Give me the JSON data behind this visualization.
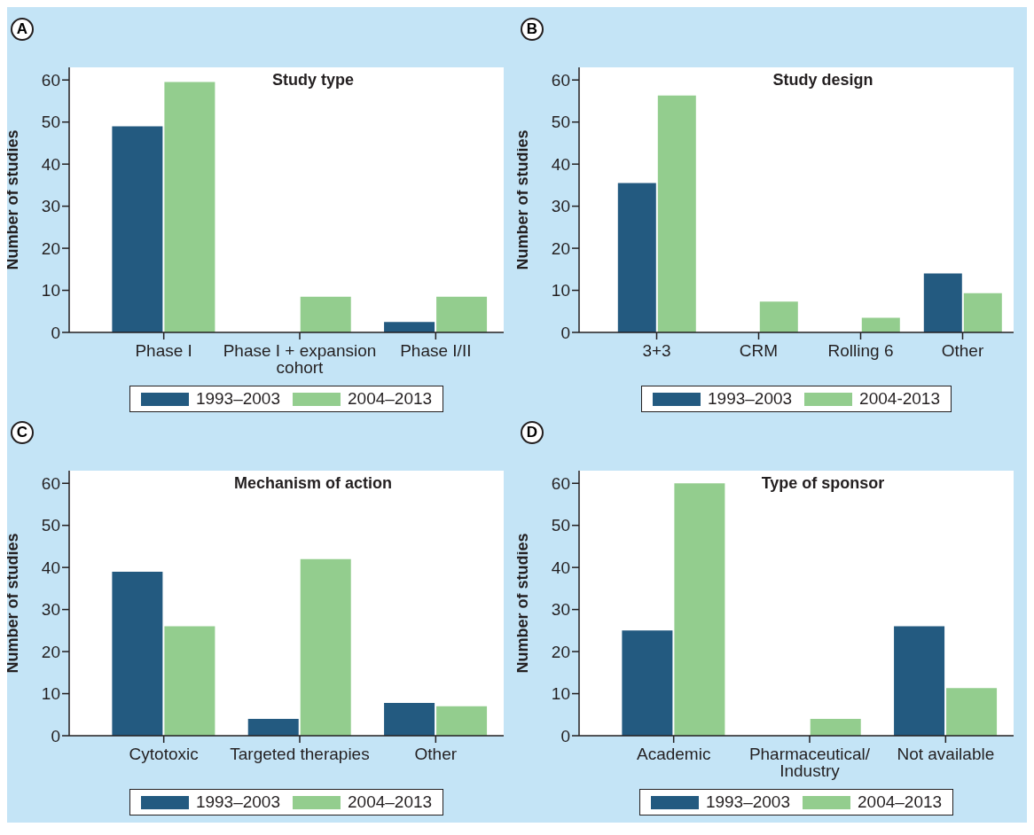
{
  "chart_data": [
    {
      "type": "bar",
      "title": "Study type",
      "ylabel": "Number of studies",
      "annotations": [
        "A"
      ],
      "categories": [
        "Phase I",
        "Phase I + expansion cohort",
        "Phase I/II"
      ],
      "series": [
        {
          "name": "1993–2003",
          "color": "#235a80",
          "values": [
            49,
            0,
            2.5
          ]
        },
        {
          "name": "2004–2013",
          "color": "#93cd8e",
          "values": [
            59.5,
            8.5,
            8.5
          ]
        }
      ],
      "ylim": [
        0,
        63
      ],
      "yticks": [
        0,
        10,
        20,
        30,
        40,
        50,
        60
      ],
      "legend": "bottom"
    },
    {
      "type": "bar",
      "title": "Study design",
      "ylabel": "Number of studies",
      "annotations": [
        "B"
      ],
      "categories": [
        "3+3",
        "CRM",
        "Rolling 6",
        "Other"
      ],
      "series": [
        {
          "name": "1993–2003",
          "color": "#235a80",
          "values": [
            35.5,
            0,
            0,
            14
          ]
        },
        {
          "name": "2004-2013",
          "color": "#93cd8e",
          "values": [
            56.3,
            7.3,
            3.5,
            9.3
          ]
        }
      ],
      "ylim": [
        0,
        63
      ],
      "yticks": [
        0,
        10,
        20,
        30,
        40,
        50,
        60
      ],
      "legend": "bottom"
    },
    {
      "type": "bar",
      "title": "Mechanism of action",
      "ylabel": "Number of studies",
      "annotations": [
        "C"
      ],
      "categories": [
        "Cytotoxic",
        "Targeted therapies",
        "Other"
      ],
      "series": [
        {
          "name": "1993–2003",
          "color": "#235a80",
          "values": [
            39,
            4,
            7.8
          ]
        },
        {
          "name": "2004–2013",
          "color": "#93cd8e",
          "values": [
            26,
            42,
            7
          ]
        }
      ],
      "ylim": [
        0,
        63
      ],
      "yticks": [
        0,
        10,
        20,
        30,
        40,
        50,
        60
      ],
      "legend": "bottom"
    },
    {
      "type": "bar",
      "title": "Type of sponsor",
      "ylabel": "Number of studies",
      "annotations": [
        "D"
      ],
      "categories": [
        "Academic",
        "Pharmaceutical/ Industry",
        "Not available"
      ],
      "series": [
        {
          "name": "1993–2003",
          "color": "#235a80",
          "values": [
            25,
            0,
            26
          ]
        },
        {
          "name": "2004–2013",
          "color": "#93cd8e",
          "values": [
            60,
            4,
            11.3
          ]
        }
      ],
      "ylim": [
        0,
        63
      ],
      "yticks": [
        0,
        10,
        20,
        30,
        40,
        50,
        60
      ],
      "legend": "bottom"
    }
  ]
}
